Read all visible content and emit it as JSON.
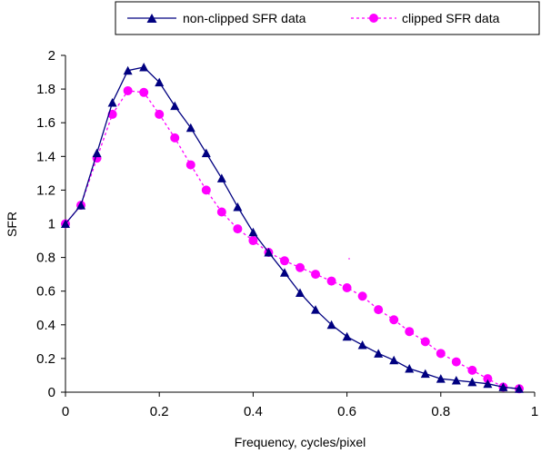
{
  "chart_data": {
    "type": "line",
    "xlabel": "Frequency, cycles/pixel",
    "ylabel": "SFR",
    "xlim": [
      0,
      1
    ],
    "ylim": [
      0,
      2
    ],
    "xticks": [
      "0",
      "0.2",
      "0.4",
      "0.6",
      "0.8",
      "1"
    ],
    "yticks": [
      "0",
      "0.2",
      "0.4",
      "0.6",
      "0.8",
      "1",
      "1.2",
      "1.4",
      "1.6",
      "1.8",
      "2"
    ],
    "grid": false,
    "legend_position": "top-right",
    "series": [
      {
        "name": "non-clipped SFR data",
        "color": "#000080",
        "marker": "triangle",
        "line": "solid",
        "x": [
          0,
          0.033,
          0.067,
          0.1,
          0.133,
          0.167,
          0.2,
          0.233,
          0.267,
          0.3,
          0.333,
          0.367,
          0.4,
          0.433,
          0.467,
          0.5,
          0.533,
          0.567,
          0.6,
          0.633,
          0.667,
          0.7,
          0.733,
          0.767,
          0.8,
          0.833,
          0.867,
          0.9,
          0.933,
          0.967
        ],
        "y": [
          1.0,
          1.11,
          1.42,
          1.72,
          1.91,
          1.93,
          1.84,
          1.7,
          1.57,
          1.42,
          1.27,
          1.1,
          0.95,
          0.83,
          0.71,
          0.59,
          0.49,
          0.4,
          0.33,
          0.28,
          0.23,
          0.19,
          0.14,
          0.11,
          0.08,
          0.07,
          0.06,
          0.05,
          0.03,
          0.02
        ]
      },
      {
        "name": "clipped SFR data",
        "color": "#ff00ff",
        "marker": "circle",
        "line": "dashed",
        "x": [
          0,
          0.033,
          0.067,
          0.1,
          0.133,
          0.167,
          0.2,
          0.233,
          0.267,
          0.3,
          0.333,
          0.367,
          0.4,
          0.433,
          0.467,
          0.5,
          0.533,
          0.567,
          0.6,
          0.633,
          0.667,
          0.7,
          0.733,
          0.767,
          0.8,
          0.833,
          0.867,
          0.9,
          0.933,
          0.967
        ],
        "y": [
          1.0,
          1.11,
          1.39,
          1.65,
          1.79,
          1.78,
          1.65,
          1.51,
          1.35,
          1.2,
          1.07,
          0.97,
          0.9,
          0.83,
          0.78,
          0.74,
          0.7,
          0.66,
          0.62,
          0.57,
          0.49,
          0.43,
          0.36,
          0.3,
          0.23,
          0.18,
          0.13,
          0.08,
          0.03,
          0.02
        ]
      }
    ]
  }
}
